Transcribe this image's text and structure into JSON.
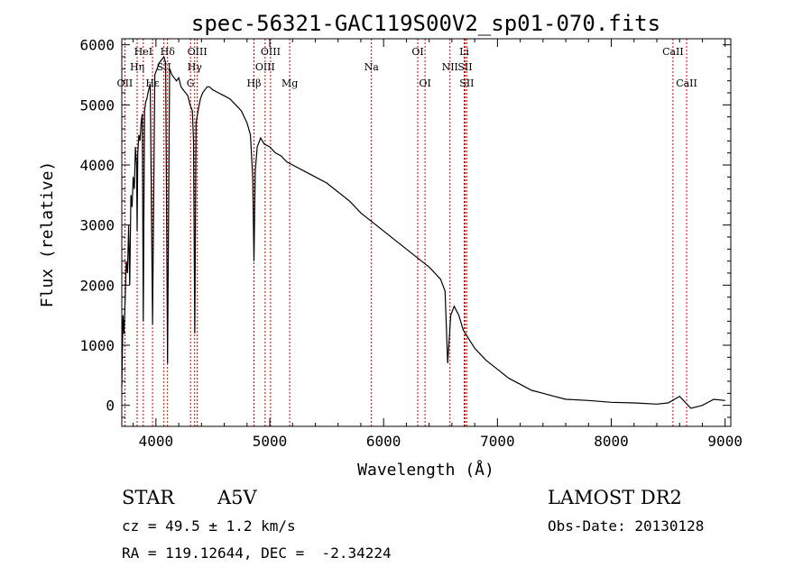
{
  "chart_data": {
    "type": "line",
    "title": "spec-56321-GAC119S00V2_sp01-070.fits",
    "xlabel": "Wavelength (Å)",
    "ylabel": "Flux (relative)",
    "xlim": [
      3700,
      9050
    ],
    "ylim": [
      -350,
      6100
    ],
    "xticks": [
      4000,
      5000,
      6000,
      7000,
      8000,
      9000
    ],
    "yticks": [
      0,
      1000,
      2000,
      3000,
      4000,
      5000,
      6000
    ],
    "grid": false,
    "series": [
      {
        "points": [
          [
            3700,
            300
          ],
          [
            3710,
            1500
          ],
          [
            3720,
            1200
          ],
          [
            3730,
            1800
          ],
          [
            3740,
            2400
          ],
          [
            3750,
            2200
          ],
          [
            3760,
            3000
          ],
          [
            3770,
            2000
          ],
          [
            3780,
            3500
          ],
          [
            3790,
            3300
          ],
          [
            3800,
            3800
          ],
          [
            3810,
            3600
          ],
          [
            3820,
            4300
          ],
          [
            3830,
            4000
          ],
          [
            3835,
            2900
          ],
          [
            3840,
            4200
          ],
          [
            3850,
            4500
          ],
          [
            3860,
            4400
          ],
          [
            3870,
            4700
          ],
          [
            3880,
            4850
          ],
          [
            3889,
            1400
          ],
          [
            3900,
            4900
          ],
          [
            3910,
            5050
          ],
          [
            3920,
            5100
          ],
          [
            3930,
            5200
          ],
          [
            3950,
            5350
          ],
          [
            3970,
            1350
          ],
          [
            3990,
            5500
          ],
          [
            4010,
            5600
          ],
          [
            4030,
            5700
          ],
          [
            4050,
            5750
          ],
          [
            4070,
            5800
          ],
          [
            4085,
            5700
          ],
          [
            4102,
            700
          ],
          [
            4120,
            5600
          ],
          [
            4140,
            5500
          ],
          [
            4160,
            5450
          ],
          [
            4180,
            5400
          ],
          [
            4200,
            5450
          ],
          [
            4220,
            5300
          ],
          [
            4240,
            5250
          ],
          [
            4260,
            5200
          ],
          [
            4280,
            5150
          ],
          [
            4300,
            5000
          ],
          [
            4320,
            4900
          ],
          [
            4330,
            4400
          ],
          [
            4341,
            1200
          ],
          [
            4352,
            4700
          ],
          [
            4370,
            4900
          ],
          [
            4390,
            5100
          ],
          [
            4410,
            5200
          ],
          [
            4430,
            5250
          ],
          [
            4450,
            5300
          ],
          [
            4470,
            5300
          ],
          [
            4500,
            5250
          ],
          [
            4550,
            5200
          ],
          [
            4600,
            5150
          ],
          [
            4650,
            5100
          ],
          [
            4700,
            5000
          ],
          [
            4750,
            4900
          ],
          [
            4800,
            4700
          ],
          [
            4830,
            4500
          ],
          [
            4850,
            3800
          ],
          [
            4861,
            2400
          ],
          [
            4872,
            3900
          ],
          [
            4890,
            4300
          ],
          [
            4920,
            4450
          ],
          [
            4950,
            4350
          ],
          [
            5000,
            4300
          ],
          [
            5050,
            4200
          ],
          [
            5100,
            4150
          ],
          [
            5150,
            4050
          ],
          [
            5200,
            4000
          ],
          [
            5300,
            3900
          ],
          [
            5400,
            3800
          ],
          [
            5500,
            3700
          ],
          [
            5600,
            3550
          ],
          [
            5700,
            3400
          ],
          [
            5800,
            3200
          ],
          [
            5900,
            3050
          ],
          [
            6000,
            2900
          ],
          [
            6100,
            2750
          ],
          [
            6200,
            2600
          ],
          [
            6300,
            2450
          ],
          [
            6400,
            2300
          ],
          [
            6500,
            2100
          ],
          [
            6540,
            1900
          ],
          [
            6563,
            700
          ],
          [
            6590,
            1500
          ],
          [
            6620,
            1650
          ],
          [
            6660,
            1500
          ],
          [
            6700,
            1250
          ],
          [
            6750,
            1100
          ],
          [
            6800,
            950
          ],
          [
            6900,
            750
          ],
          [
            7000,
            600
          ],
          [
            7100,
            450
          ],
          [
            7200,
            350
          ],
          [
            7300,
            250
          ],
          [
            7400,
            200
          ],
          [
            7500,
            150
          ],
          [
            7600,
            100
          ],
          [
            7800,
            80
          ],
          [
            8000,
            50
          ],
          [
            8200,
            40
          ],
          [
            8400,
            20
          ],
          [
            8500,
            40
          ],
          [
            8600,
            150
          ],
          [
            8700,
            -50
          ],
          [
            8800,
            0
          ],
          [
            8900,
            100
          ],
          [
            9000,
            80
          ]
        ]
      }
    ],
    "lines": [
      {
        "wave": 3727,
        "label": "OII",
        "level": 3
      },
      {
        "wave": 3835,
        "label": "Hη",
        "level": 2
      },
      {
        "wave": 3889,
        "label": "HeI",
        "level": 1
      },
      {
        "wave": 3970,
        "label": "Hε",
        "level": 3
      },
      {
        "wave": 4102,
        "label": "Hδ",
        "level": 1
      },
      {
        "wave": 4070,
        "label": "SII",
        "level": 2
      },
      {
        "wave": 4304,
        "label": "G",
        "level": 3
      },
      {
        "wave": 4340,
        "label": "Hγ",
        "level": 2
      },
      {
        "wave": 4363,
        "label": "OIII",
        "level": 1
      },
      {
        "wave": 4861,
        "label": "Hβ",
        "level": 3
      },
      {
        "wave": 4959,
        "label": "OIII",
        "level": 2
      },
      {
        "wave": 5007,
        "label": "OIII",
        "level": 1
      },
      {
        "wave": 5175,
        "label": "Mg",
        "level": 3
      },
      {
        "wave": 5893,
        "label": "Na",
        "level": 2
      },
      {
        "wave": 6300,
        "label": "OI",
        "level": 1
      },
      {
        "wave": 6364,
        "label": "OI",
        "level": 3
      },
      {
        "wave": 6583,
        "label": "NII",
        "level": 2
      },
      {
        "wave": 6708,
        "label": "Li",
        "level": 1
      },
      {
        "wave": 6716,
        "label": "SII",
        "level": 2
      },
      {
        "wave": 6731,
        "label": "SII",
        "level": 3
      },
      {
        "wave": 8542,
        "label": "CaII",
        "level": 1
      },
      {
        "wave": 8662,
        "label": "CaII",
        "level": 3
      }
    ],
    "colors": {
      "spectrum": "#000000",
      "line_markers": "#cc0000",
      "frame": "#000000"
    }
  },
  "info": {
    "object_type": "STAR",
    "subclass": "A5V",
    "survey": "LAMOST DR2",
    "cz": "cz = 49.5 ± 1.2 km/s",
    "obs_date": "Obs-Date: 20130128",
    "coords": "RA = 119.12644, DEC =  -2.34224"
  }
}
